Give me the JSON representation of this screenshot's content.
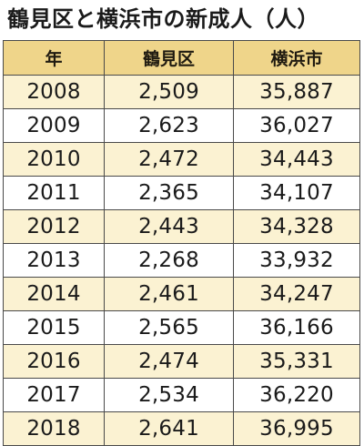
{
  "title": "鶴見区と横浜市の新成人（人）",
  "colors": {
    "header_bg": "#efd58a",
    "stripe_bg": "#fbf2d2",
    "border": "#4a4a4a"
  },
  "chart_data": {
    "type": "table",
    "title": "鶴見区と横浜市の新成人（人）",
    "columns": [
      "年",
      "鶴見区",
      "横浜市"
    ],
    "rows": [
      [
        "2008",
        "2,509",
        "35,887"
      ],
      [
        "2009",
        "2,623",
        "36,027"
      ],
      [
        "2010",
        "2,472",
        "34,443"
      ],
      [
        "2011",
        "2,365",
        "34,107"
      ],
      [
        "2012",
        "2,443",
        "34,328"
      ],
      [
        "2013",
        "2,268",
        "33,932"
      ],
      [
        "2014",
        "2,461",
        "34,247"
      ],
      [
        "2015",
        "2,565",
        "36,166"
      ],
      [
        "2016",
        "2,474",
        "35,331"
      ],
      [
        "2017",
        "2,534",
        "36,220"
      ],
      [
        "2018",
        "2,641",
        "36,995"
      ]
    ],
    "series": [
      {
        "name": "鶴見区",
        "values": [
          2509,
          2623,
          2472,
          2365,
          2443,
          2268,
          2461,
          2565,
          2474,
          2534,
          2641
        ]
      },
      {
        "name": "横浜市",
        "values": [
          35887,
          36027,
          34443,
          34107,
          34328,
          33932,
          34247,
          36166,
          35331,
          36220,
          36995
        ]
      }
    ],
    "categories": [
      "2008",
      "2009",
      "2010",
      "2011",
      "2012",
      "2013",
      "2014",
      "2015",
      "2016",
      "2017",
      "2018"
    ]
  }
}
